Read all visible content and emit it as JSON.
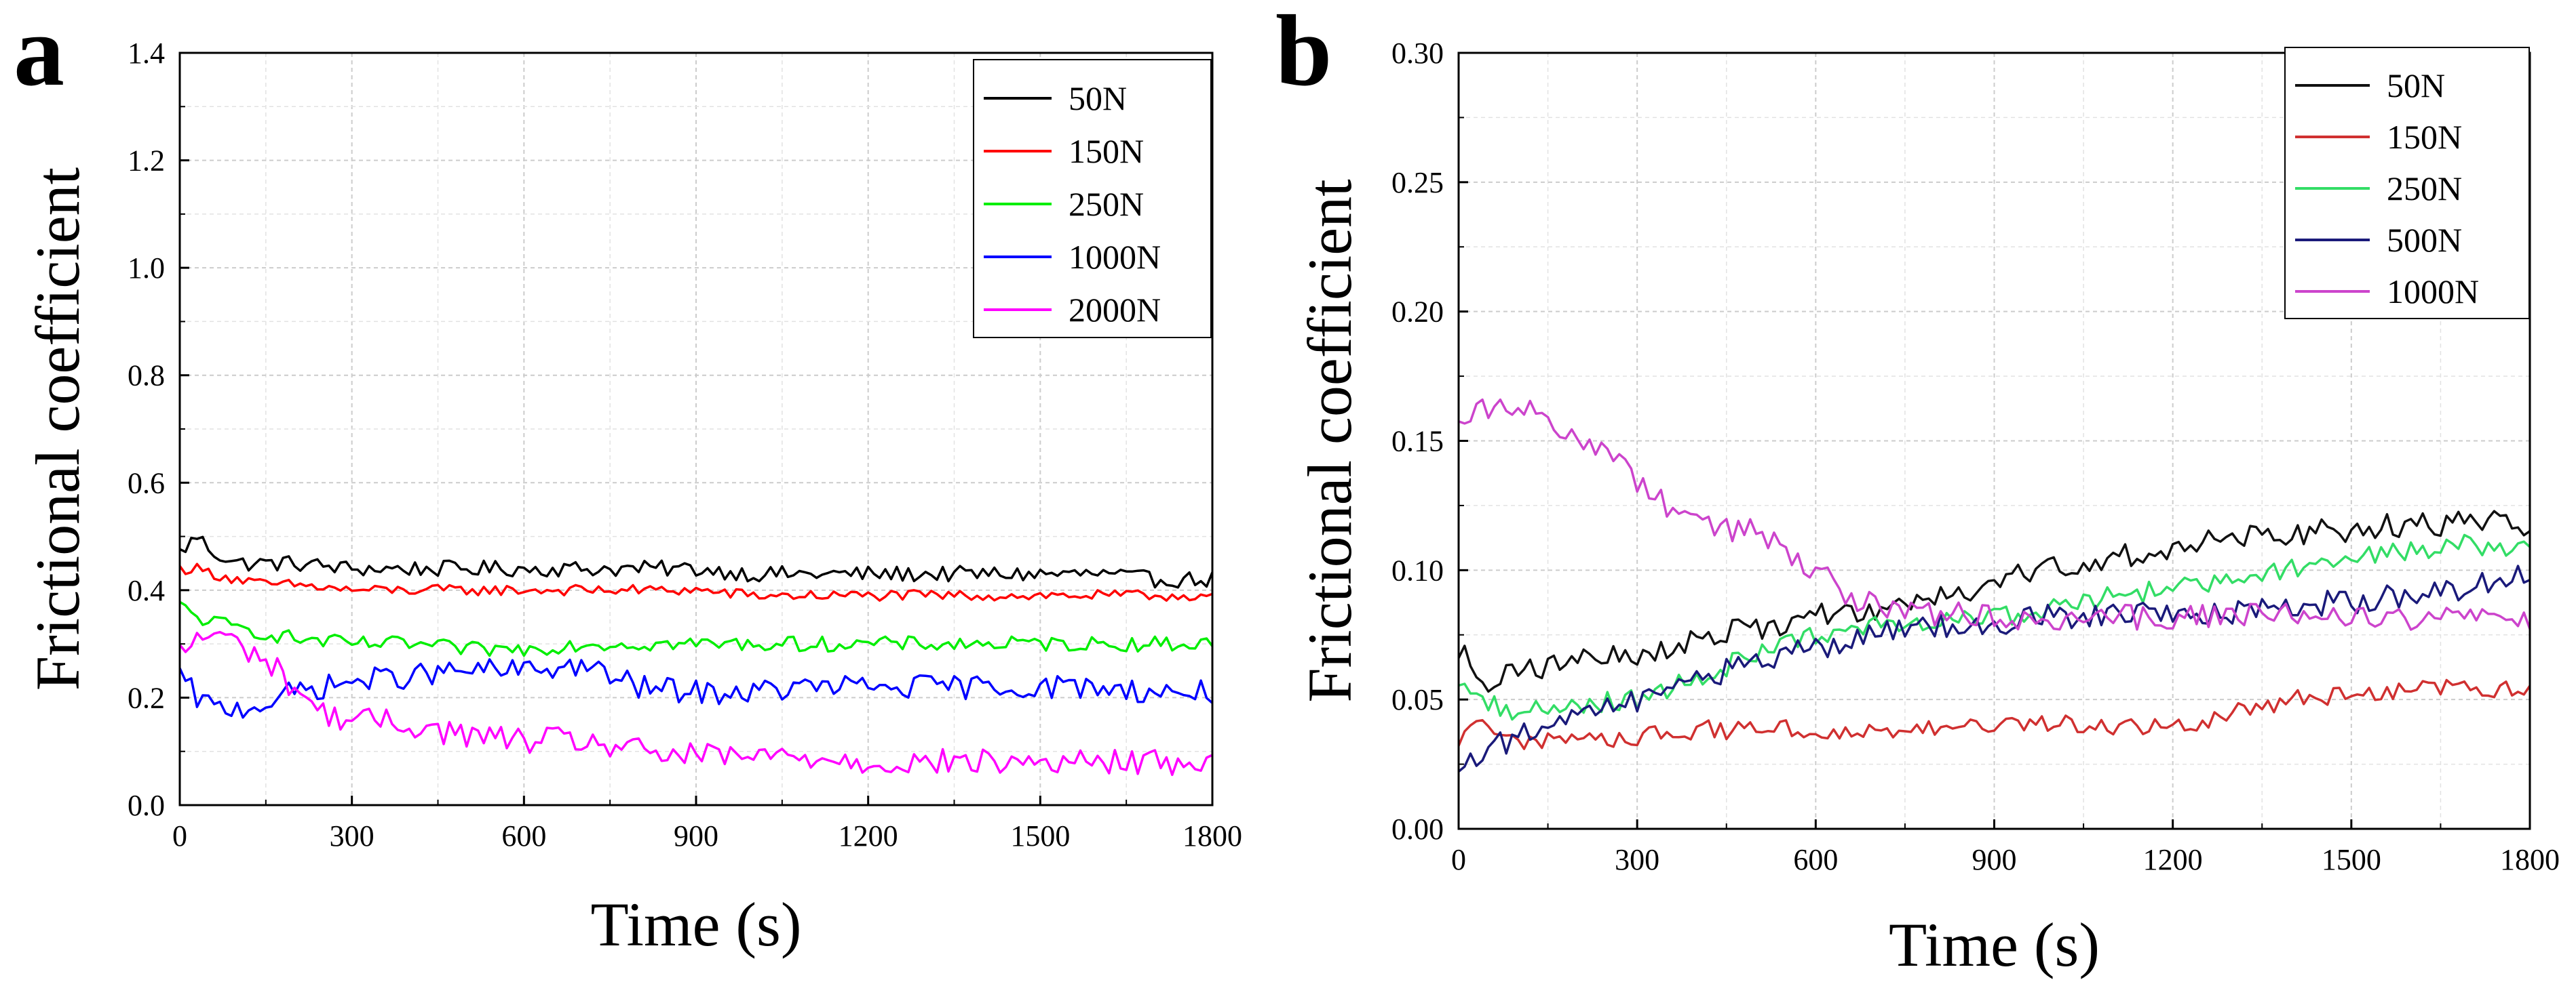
{
  "figure": {
    "colors": {
      "black": "#000000",
      "red": "#ff0000",
      "green": "#00ee00",
      "blue": "#0000ff",
      "magenta": "#ff00ff",
      "b_black": "#111111",
      "b_red": "#d03030",
      "b_green": "#33dd66",
      "b_navy": "#1a1a7a",
      "b_pink": "#cc44cc"
    }
  },
  "chart_data": [
    {
      "panel_letter": "a",
      "type": "line",
      "xlabel": "Time (s)",
      "ylabel": "Frictional coefficient",
      "xlim": [
        0,
        1800
      ],
      "ylim": [
        0.0,
        1.4
      ],
      "xticks": [
        "0",
        "300",
        "600",
        "900",
        "1200",
        "1500",
        "1800"
      ],
      "yticks": [
        "0.0",
        "0.2",
        "0.4",
        "0.6",
        "0.8",
        "1.0",
        "1.2",
        "1.4"
      ],
      "grid": true,
      "legend_position": "top-right",
      "series": [
        {
          "name": "50N",
          "color": "#000000",
          "x": [
            0,
            30,
            60,
            100,
            150,
            200,
            300,
            400,
            500,
            600,
            700,
            800,
            900,
            1000,
            1100,
            1200,
            1300,
            1400,
            1500,
            1600,
            1700,
            1800
          ],
          "y": [
            0.47,
            0.5,
            0.47,
            0.45,
            0.45,
            0.45,
            0.44,
            0.44,
            0.44,
            0.44,
            0.44,
            0.44,
            0.44,
            0.43,
            0.43,
            0.43,
            0.43,
            0.43,
            0.43,
            0.43,
            0.42,
            0.42
          ]
        },
        {
          "name": "150N",
          "color": "#ff0000",
          "x": [
            0,
            30,
            60,
            100,
            150,
            200,
            300,
            400,
            500,
            600,
            700,
            800,
            900,
            1000,
            1100,
            1200,
            1300,
            1400,
            1500,
            1600,
            1700,
            1800
          ],
          "y": [
            0.44,
            0.44,
            0.43,
            0.42,
            0.41,
            0.41,
            0.4,
            0.4,
            0.4,
            0.4,
            0.4,
            0.4,
            0.4,
            0.39,
            0.39,
            0.39,
            0.39,
            0.39,
            0.39,
            0.39,
            0.39,
            0.39
          ]
        },
        {
          "name": "250N",
          "color": "#00ee00",
          "x": [
            0,
            30,
            60,
            100,
            150,
            200,
            300,
            400,
            500,
            600,
            700,
            800,
            900,
            1000,
            1100,
            1200,
            1300,
            1400,
            1500,
            1600,
            1700,
            1800
          ],
          "y": [
            0.37,
            0.35,
            0.34,
            0.33,
            0.32,
            0.31,
            0.3,
            0.3,
            0.29,
            0.29,
            0.3,
            0.3,
            0.3,
            0.3,
            0.3,
            0.3,
            0.3,
            0.3,
            0.3,
            0.3,
            0.3,
            0.3
          ]
        },
        {
          "name": "1000N",
          "color": "#0000ff",
          "x": [
            0,
            30,
            60,
            100,
            150,
            200,
            300,
            400,
            500,
            600,
            700,
            750,
            800,
            900,
            1000,
            1100,
            1200,
            1300,
            1400,
            1500,
            1600,
            1700,
            1800
          ],
          "y": [
            0.24,
            0.2,
            0.18,
            0.18,
            0.19,
            0.21,
            0.23,
            0.24,
            0.25,
            0.25,
            0.26,
            0.24,
            0.22,
            0.21,
            0.21,
            0.22,
            0.22,
            0.22,
            0.22,
            0.22,
            0.22,
            0.21,
            0.21
          ]
        },
        {
          "name": "2000N",
          "color": "#ff00ff",
          "x": [
            0,
            30,
            60,
            100,
            150,
            200,
            250,
            300,
            400,
            500,
            600,
            700,
            800,
            900,
            1000,
            1100,
            1200,
            1300,
            1400,
            1500,
            1600,
            1700,
            1800
          ],
          "y": [
            0.28,
            0.31,
            0.32,
            0.3,
            0.27,
            0.22,
            0.17,
            0.16,
            0.15,
            0.13,
            0.12,
            0.12,
            0.1,
            0.09,
            0.09,
            0.09,
            0.08,
            0.08,
            0.08,
            0.08,
            0.08,
            0.08,
            0.08
          ]
        }
      ]
    },
    {
      "panel_letter": "b",
      "type": "line",
      "xlabel": "Time (s)",
      "ylabel": "Frictional coefficient",
      "xlim": [
        0,
        1800
      ],
      "ylim": [
        0.0,
        0.3
      ],
      "xticks": [
        "0",
        "300",
        "600",
        "900",
        "1200",
        "1500",
        "1800"
      ],
      "yticks": [
        "0.00",
        "0.05",
        "0.10",
        "0.15",
        "0.20",
        "0.25",
        "0.30"
      ],
      "grid": true,
      "legend_position": "top-right",
      "series": [
        {
          "name": "50N",
          "color": "#111111",
          "x": [
            0,
            30,
            60,
            100,
            150,
            200,
            300,
            400,
            500,
            600,
            700,
            800,
            900,
            1000,
            1100,
            1200,
            1300,
            1400,
            1500,
            1600,
            1700,
            1800
          ],
          "y": [
            0.07,
            0.06,
            0.057,
            0.06,
            0.063,
            0.065,
            0.068,
            0.073,
            0.078,
            0.082,
            0.085,
            0.088,
            0.095,
            0.101,
            0.105,
            0.108,
            0.112,
            0.114,
            0.116,
            0.118,
            0.118,
            0.118
          ]
        },
        {
          "name": "150N",
          "color": "#d03030",
          "x": [
            0,
            30,
            60,
            100,
            150,
            200,
            300,
            400,
            500,
            600,
            700,
            800,
            900,
            1000,
            1100,
            1200,
            1300,
            1400,
            1500,
            1600,
            1700,
            1800
          ],
          "y": [
            0.035,
            0.038,
            0.04,
            0.035,
            0.033,
            0.035,
            0.036,
            0.038,
            0.038,
            0.038,
            0.038,
            0.038,
            0.04,
            0.04,
            0.04,
            0.04,
            0.045,
            0.05,
            0.052,
            0.055,
            0.055,
            0.052
          ]
        },
        {
          "name": "250N",
          "color": "#33dd66",
          "x": [
            0,
            30,
            60,
            100,
            150,
            200,
            300,
            400,
            500,
            600,
            700,
            800,
            900,
            1000,
            1100,
            1200,
            1300,
            1400,
            1500,
            1600,
            1700,
            1800
          ],
          "y": [
            0.058,
            0.052,
            0.048,
            0.045,
            0.047,
            0.048,
            0.05,
            0.058,
            0.068,
            0.075,
            0.078,
            0.08,
            0.082,
            0.085,
            0.09,
            0.093,
            0.097,
            0.101,
            0.105,
            0.108,
            0.11,
            0.108
          ]
        },
        {
          "name": "500N",
          "color": "#1a1a7a",
          "x": [
            0,
            30,
            60,
            100,
            150,
            200,
            300,
            400,
            500,
            600,
            700,
            800,
            900,
            1000,
            1100,
            1200,
            1300,
            1400,
            1500,
            1600,
            1700,
            1800
          ],
          "y": [
            0.025,
            0.028,
            0.032,
            0.036,
            0.04,
            0.044,
            0.05,
            0.058,
            0.065,
            0.07,
            0.075,
            0.078,
            0.08,
            0.082,
            0.083,
            0.083,
            0.084,
            0.086,
            0.088,
            0.09,
            0.094,
            0.098
          ]
        },
        {
          "name": "1000N",
          "color": "#cc44cc",
          "x": [
            0,
            30,
            60,
            100,
            150,
            200,
            250,
            300,
            350,
            400,
            500,
            600,
            650,
            700,
            800,
            900,
            1000,
            1100,
            1200,
            1300,
            1400,
            1500,
            1600,
            1700,
            1800
          ],
          "y": [
            0.16,
            0.162,
            0.163,
            0.163,
            0.158,
            0.15,
            0.145,
            0.135,
            0.125,
            0.118,
            0.115,
            0.1,
            0.09,
            0.086,
            0.083,
            0.082,
            0.082,
            0.082,
            0.082,
            0.082,
            0.082,
            0.082,
            0.082,
            0.082,
            0.082
          ]
        }
      ]
    }
  ]
}
